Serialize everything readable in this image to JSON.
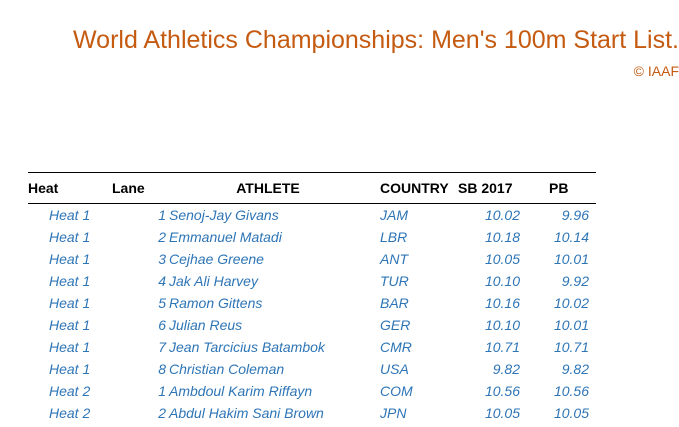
{
  "title": "World Athletics Championships: Men's 100m Start List.",
  "copyright": "© IAAF",
  "columns": {
    "heat": "Heat",
    "lane": "Lane",
    "athlete": "ATHLETE",
    "country": "COUNTRY",
    "sb": "SB 2017",
    "pb": "PB"
  },
  "rows": [
    {
      "heat": "Heat 1",
      "lane": "1",
      "athlete": "Senoj-Jay Givans",
      "country": "JAM",
      "sb": "10.02",
      "pb": "9.96"
    },
    {
      "heat": "Heat 1",
      "lane": "2",
      "athlete": "Emmanuel Matadi",
      "country": "LBR",
      "sb": "10.18",
      "pb": "10.14"
    },
    {
      "heat": "Heat 1",
      "lane": "3",
      "athlete": "Cejhae Greene",
      "country": "ANT",
      "sb": "10.05",
      "pb": "10.01"
    },
    {
      "heat": "Heat 1",
      "lane": "4",
      "athlete": "Jak Ali Harvey",
      "country": "TUR",
      "sb": "10.10",
      "pb": "9.92"
    },
    {
      "heat": "Heat 1",
      "lane": "5",
      "athlete": "Ramon Gittens",
      "country": "BAR",
      "sb": "10.16",
      "pb": "10.02"
    },
    {
      "heat": "Heat 1",
      "lane": "6",
      "athlete": "Julian Reus",
      "country": "GER",
      "sb": "10.10",
      "pb": "10.01"
    },
    {
      "heat": "Heat 1",
      "lane": "7",
      "athlete": "Jean Tarcicius Batambok",
      "country": "CMR",
      "sb": "10.71",
      "pb": "10.71"
    },
    {
      "heat": "Heat 1",
      "lane": "8",
      "athlete": "Christian Coleman",
      "country": "USA",
      "sb": "9.82",
      "pb": "9.82"
    },
    {
      "heat": "Heat 2",
      "lane": "1",
      "athlete": "Ambdoul Karim Riffayn",
      "country": "COM",
      "sb": "10.56",
      "pb": "10.56"
    },
    {
      "heat": "Heat 2",
      "lane": "2",
      "athlete": "Abdul Hakim Sani Brown",
      "country": "JPN",
      "sb": "10.05",
      "pb": "10.05"
    }
  ]
}
